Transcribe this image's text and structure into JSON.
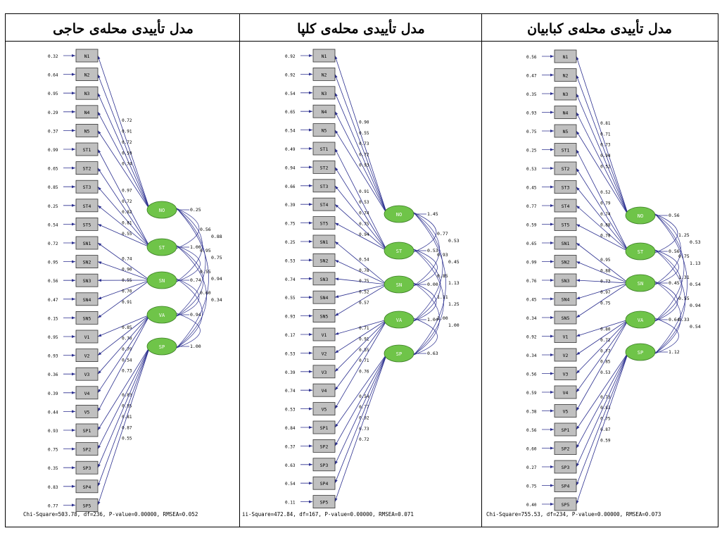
{
  "figure": {
    "panels": [
      {
        "id": "haji",
        "title": "مدل تأییدی محله‌ی حاجی",
        "error_variances": [
          "0.32",
          "0.64",
          "0.95",
          "0.29",
          "0.37",
          "0.99",
          "0.65",
          "0.85",
          "0.25",
          "0.54",
          "0.72",
          "0.95",
          "0.56",
          "0.47",
          "0.15",
          "0.95",
          "0.93",
          "0.36",
          "0.39",
          "0.44",
          "0.93",
          "0.75",
          "0.35",
          "0.83",
          "0.77"
        ],
        "loadings": [
          "0.72",
          "0.91",
          "0.72",
          "0.59",
          "0.74",
          "0.97",
          "0.72",
          "0.82",
          "0.81",
          "0.55",
          "0.74",
          "0.90",
          "0.55",
          "0.70",
          "0.91",
          "0.85",
          "0.70",
          "0.79",
          "0.54",
          "0.73",
          "0.83",
          "0.85",
          "0.81",
          "0.87",
          "0.55"
        ],
        "factor_variances": [
          "0.25",
          "1.00",
          "0.74",
          "0.94",
          "1.00"
        ],
        "covariances": [
          "0.56",
          "0.88",
          "0.95",
          "0.75",
          "0.55",
          "0.94",
          "0.60",
          "0.34"
        ],
        "fit": "Chi-Square=503.78, df=236, P-value=0.00000, RMSEA=0.052"
      },
      {
        "id": "kolpa",
        "title": "مدل تأییدی محله‌ی کلپا",
        "error_variances": [
          "0.92",
          "0.92",
          "0.54",
          "0.65",
          "0.54",
          "0.49",
          "0.94",
          "0.66",
          "0.39",
          "0.75",
          "0.25",
          "0.53",
          "0.74",
          "0.55",
          "0.93",
          "0.17",
          "0.53",
          "0.39",
          "0.74",
          "0.53",
          "0.84",
          "0.37",
          "0.63",
          "0.54",
          "0.11"
        ],
        "loadings": [
          "0.90",
          "0.55",
          "0.73",
          "0.72",
          "0.93",
          "0.91",
          "0.53",
          "0.74",
          "0.75",
          "0.94",
          "0.54",
          "0.78",
          "0.75",
          "0.52",
          "0.57",
          "0.71",
          "0.91",
          "0.55",
          "0.71",
          "0.76",
          "0.54",
          "0.77",
          "0.92",
          "0.73",
          "0.72"
        ],
        "factor_variances": [
          "1.45",
          "0.53",
          "0.00",
          "1.04",
          "0.63"
        ],
        "covariances": [
          "0.77",
          "0.53",
          "0.93",
          "0.45",
          "0.85",
          "1.13",
          "1.11",
          "1.25",
          "1.00",
          "1.00"
        ],
        "fit": "ii-Square=472.84, df=167, P-value=0.00000, RMSEA=0.071"
      },
      {
        "id": "kababian",
        "title": "مدل تأییدی محله‌ی کبابیان",
        "error_variances": [
          "0.56",
          "0.47",
          "0.35",
          "0.93",
          "0.75",
          "0.25",
          "0.53",
          "0.45",
          "0.77",
          "0.59",
          "0.65",
          "0.99",
          "0.76",
          "0.45",
          "0.34",
          "0.92",
          "0.34",
          "0.56",
          "0.59",
          "0.38",
          "0.56",
          "0.60",
          "0.27",
          "0.75",
          "0.40"
        ],
        "loadings": [
          "0.81",
          "0.71",
          "0.73",
          "0.94",
          "0.52",
          "0.52",
          "0.79",
          "0.74",
          "0.88",
          "0.78",
          "0.95",
          "0.88",
          "0.73",
          "0.97",
          "0.75",
          "0.80",
          "0.72",
          "0.77",
          "0.85",
          "0.53",
          "0.73",
          "0.83",
          "0.75",
          "0.87",
          "0.59"
        ],
        "factor_variances": [
          "0.56",
          "0.56",
          "0.45",
          "0.64",
          "1.12"
        ],
        "covariances": [
          "1.25",
          "0.53",
          "0.75",
          "1.13",
          "1.31",
          "0.54",
          "0.55",
          "0.94",
          "0.33",
          "0.54"
        ],
        "fit": "Chi-Square=755.53, df=234, P-value=0.00000, RMSEA=0.073"
      }
    ],
    "indicators": [
      "N1",
      "N2",
      "N3",
      "N4",
      "N5",
      "ST1",
      "ST2",
      "ST3",
      "ST4",
      "ST5",
      "SN1",
      "SN2",
      "SN3",
      "SN4",
      "SN5",
      "V1",
      "V2",
      "V3",
      "V4",
      "V5",
      "SP1",
      "SP2",
      "SP3",
      "SP4",
      "SP5"
    ],
    "factors": [
      "NO",
      "ST",
      "SN",
      "VA",
      "SP"
    ],
    "colors": {
      "box_fill": "#c0c0c0",
      "ellipse_fill": "#6fc449",
      "path_line": "#2b2f8f",
      "border": "#000000",
      "ellipse_text": "#ffffff"
    }
  }
}
